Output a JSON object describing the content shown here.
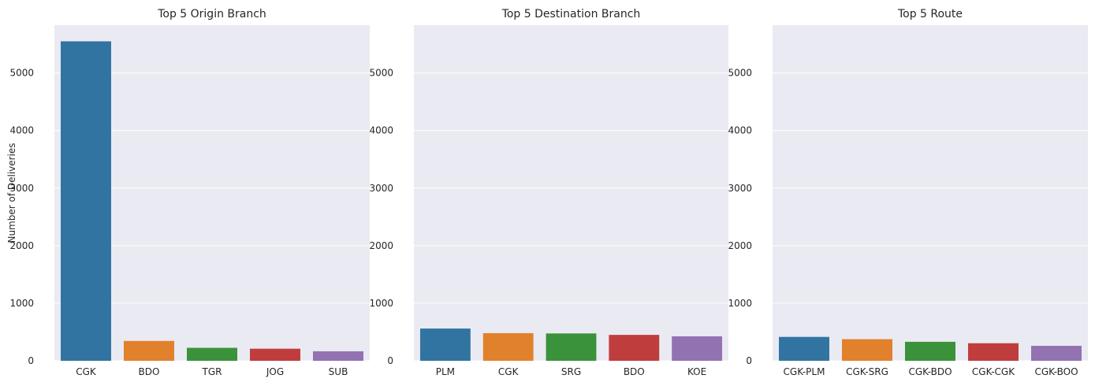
{
  "chart_data": [
    {
      "type": "bar",
      "title": "Top 5 Origin Branch",
      "xlabel": "",
      "ylabel": "Number of Deliveries",
      "categories": [
        "CGK",
        "BDO",
        "TGR",
        "JOG",
        "SUB"
      ],
      "values": [
        5550,
        345,
        225,
        210,
        165
      ],
      "ylim": [
        0,
        5830
      ],
      "yticks": [
        0,
        1000,
        2000,
        3000,
        4000,
        5000
      ],
      "colors": [
        "#3274a1",
        "#e1812c",
        "#3a923a",
        "#c03d3e",
        "#9372b2"
      ],
      "grid": true
    },
    {
      "type": "bar",
      "title": "Top 5 Destination Branch",
      "xlabel": "",
      "ylabel": "",
      "categories": [
        "PLM",
        "CGK",
        "SRG",
        "BDO",
        "KOE"
      ],
      "values": [
        560,
        480,
        475,
        450,
        425
      ],
      "ylim": [
        0,
        5830
      ],
      "yticks": [
        0,
        1000,
        2000,
        3000,
        4000,
        5000
      ],
      "colors": [
        "#3274a1",
        "#e1812c",
        "#3a923a",
        "#c03d3e",
        "#9372b2"
      ],
      "grid": true
    },
    {
      "type": "bar",
      "title": "Top 5 Route",
      "xlabel": "",
      "ylabel": "",
      "categories": [
        "CGK-PLM",
        "CGK-SRG",
        "CGK-BDO",
        "CGK-CGK",
        "CGK-BOO"
      ],
      "values": [
        415,
        375,
        330,
        305,
        260
      ],
      "ylim": [
        0,
        5830
      ],
      "yticks": [
        0,
        1000,
        2000,
        3000,
        4000,
        5000
      ],
      "colors": [
        "#3274a1",
        "#e1812c",
        "#3a923a",
        "#c03d3e",
        "#9372b2"
      ],
      "grid": true
    }
  ]
}
